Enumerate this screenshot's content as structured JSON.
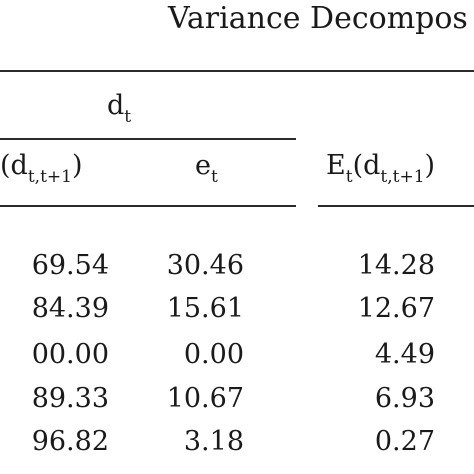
{
  "table": {
    "title": "Variance Decompos",
    "group_header": {
      "base": "d",
      "sub": "t"
    },
    "columns": [
      {
        "pre": "(d",
        "sub": "t,t+1",
        "post": ")"
      },
      {
        "base": "e",
        "sub": "t"
      },
      {
        "pre": "E",
        "sub1": "t",
        "mid": "(d",
        "sub2": "t,t+1",
        "post": ")"
      }
    ],
    "rows": [
      [
        "69.54",
        "30.46",
        "14.28"
      ],
      [
        "84.39",
        "15.61",
        "12.67"
      ],
      [
        "00.00",
        "0.00",
        "4.49"
      ],
      [
        "89.33",
        "10.67",
        "6.93"
      ],
      [
        "96.82",
        "3.18",
        "0.27"
      ]
    ]
  }
}
